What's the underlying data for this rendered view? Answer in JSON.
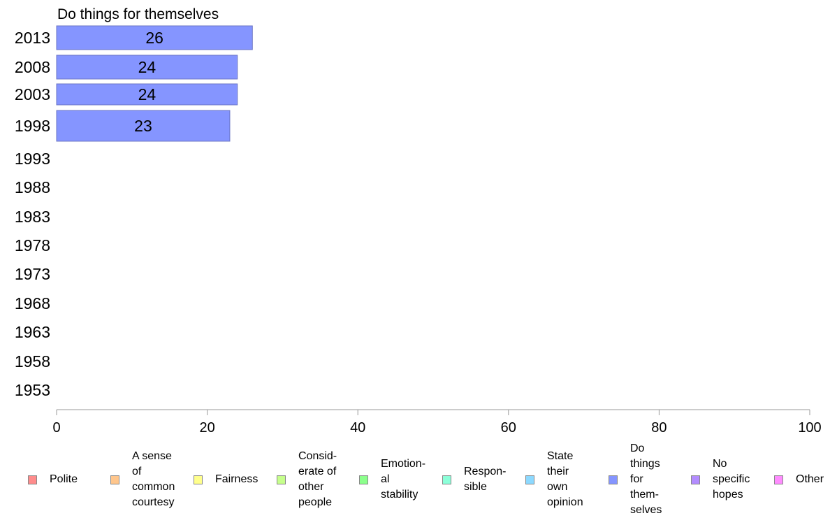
{
  "chart_data": {
    "type": "bar",
    "orientation": "horizontal",
    "title": "Do things for themselves",
    "categories": [
      "2013",
      "2008",
      "2003",
      "1998",
      "1993",
      "1988",
      "1983",
      "1978",
      "1973",
      "1968",
      "1963",
      "1958",
      "1953"
    ],
    "series": [
      {
        "name": "Do things for themselves",
        "values": [
          26,
          24,
          24,
          23,
          null,
          null,
          null,
          null,
          null,
          null,
          null,
          null,
          null
        ],
        "value_labels": [
          "26",
          "24",
          "24",
          "23",
          "",
          "",
          "",
          "",
          "",
          "",
          "",
          "",
          ""
        ],
        "color": "#8595ff"
      }
    ],
    "xlim": [
      0,
      100
    ],
    "xticks": [
      0,
      20,
      40,
      60,
      80,
      100
    ],
    "grid": false,
    "legend": {
      "placement": "bottom",
      "items": [
        {
          "label": "Polite",
          "color": "#ff8c8c"
        },
        {
          "label": "A sense\nof\ncommon\ncourtesy",
          "color": "#ffc68c"
        },
        {
          "label": "Fairness",
          "color": "#ffff8c"
        },
        {
          "label": "Consid-\nerate of\nother\npeople",
          "color": "#c6ff8c"
        },
        {
          "label": "Emotion-\nal\nstability",
          "color": "#8cff8c"
        },
        {
          "label": "Respon-\nsible",
          "color": "#8cffd9"
        },
        {
          "label": "State\ntheir\nown\nopinion",
          "color": "#8cd9ff"
        },
        {
          "label": "Do\nthings\nfor\nthem-\nselves",
          "color": "#8595ff"
        },
        {
          "label": "No\nspecific\nhopes",
          "color": "#b38cff"
        },
        {
          "label": "Other",
          "color": "#ff8cff"
        }
      ]
    }
  }
}
